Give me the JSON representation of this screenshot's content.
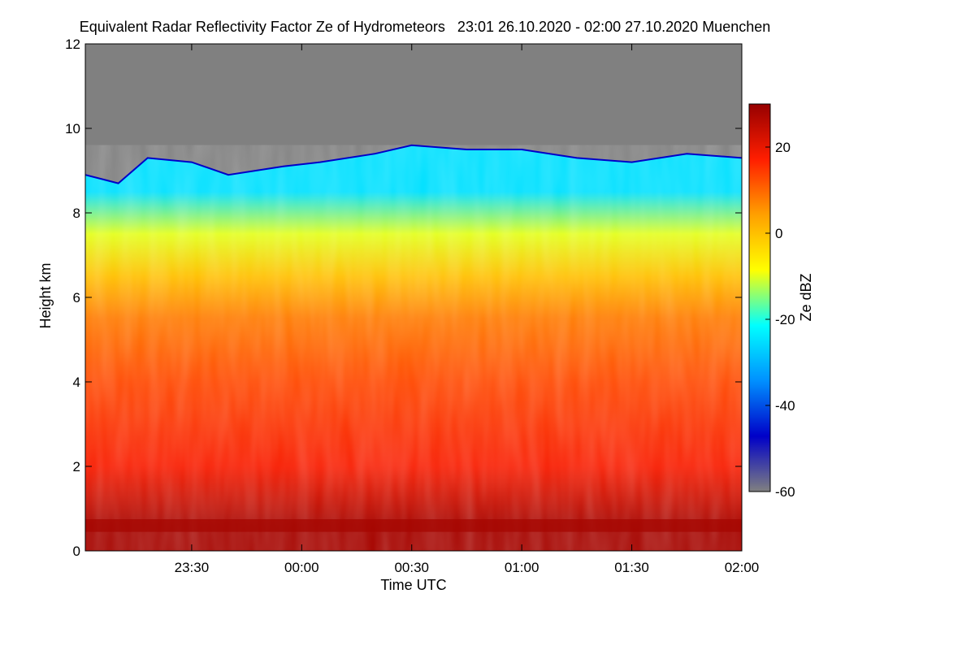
{
  "chart_data": {
    "type": "heatmap",
    "title": "Equivalent Radar Reflectivity Factor Ze of Hydrometeors   23:01 26.10.2020 - 02:00 27.10.2020 Muenchen",
    "xlabel": "Time UTC",
    "ylabel": "Height km",
    "colorbar_label": "Ze dBZ",
    "xlim": [
      "23:01",
      "02:00"
    ],
    "x_ticks": [
      "23:30",
      "00:00",
      "00:30",
      "01:00",
      "01:30",
      "02:00"
    ],
    "ylim": [
      0,
      12
    ],
    "y_ticks": [
      0,
      2,
      4,
      6,
      8,
      10,
      12
    ],
    "zlim": [
      -60,
      30
    ],
    "colorbar_ticks": [
      -60,
      -40,
      -20,
      0,
      20
    ],
    "colormap": [
      "#808080",
      "#0000c8",
      "#0090ff",
      "#00ffff",
      "#ffff00",
      "#ffa000",
      "#ff1e00",
      "#960000"
    ],
    "echo_top_km": [
      {
        "time": "23:01",
        "value": 8.9
      },
      {
        "time": "23:10",
        "value": 8.7
      },
      {
        "time": "23:18",
        "value": 9.3
      },
      {
        "time": "23:30",
        "value": 9.2
      },
      {
        "time": "23:40",
        "value": 8.9
      },
      {
        "time": "23:55",
        "value": 9.1
      },
      {
        "time": "00:05",
        "value": 9.2
      },
      {
        "time": "00:20",
        "value": 9.4
      },
      {
        "time": "00:30",
        "value": 9.6
      },
      {
        "time": "00:45",
        "value": 9.5
      },
      {
        "time": "01:00",
        "value": 9.5
      },
      {
        "time": "01:15",
        "value": 9.3
      },
      {
        "time": "01:30",
        "value": 9.2
      },
      {
        "time": "01:45",
        "value": 9.4
      },
      {
        "time": "02:00",
        "value": 9.3
      }
    ],
    "layers": [
      {
        "height_km": 0.6,
        "ze_dbz": 28
      },
      {
        "height_km": 2,
        "ze_dbz": 18
      },
      {
        "height_km": 4,
        "ze_dbz": 13
      },
      {
        "height_km": 5.5,
        "ze_dbz": 8
      },
      {
        "height_km": 6.5,
        "ze_dbz": 0
      },
      {
        "height_km": 7.5,
        "ze_dbz": -10
      },
      {
        "height_km": 8.5,
        "ze_dbz": -25
      }
    ]
  }
}
